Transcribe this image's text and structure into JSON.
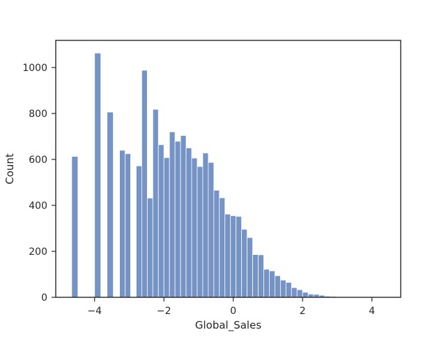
{
  "chart_data": {
    "type": "bar",
    "title": "",
    "xlabel": "Global_Sales",
    "ylabel": "Count",
    "xlim": [
      -5.12,
      4.83
    ],
    "ylim": [
      0,
      1118
    ],
    "x_ticks": [
      -4,
      -2,
      0,
      2,
      4
    ],
    "y_ticks": [
      0,
      200,
      400,
      600,
      800,
      1000
    ],
    "bar_color": "#7593c5",
    "bar_edge_color": "#ffffff",
    "grid": false,
    "bins": [
      {
        "x0": -4.66,
        "x1": -4.48,
        "count": 613
      },
      {
        "x0": -4.0,
        "x1": -3.82,
        "count": 1063
      },
      {
        "x0": -3.64,
        "x1": -3.46,
        "count": 806
      },
      {
        "x0": -3.28,
        "x1": -3.12,
        "count": 640
      },
      {
        "x0": -3.12,
        "x1": -2.96,
        "count": 625
      },
      {
        "x0": -2.8,
        "x1": -2.64,
        "count": 572
      },
      {
        "x0": -2.64,
        "x1": -2.48,
        "count": 988
      },
      {
        "x0": -2.48,
        "x1": -2.32,
        "count": 432
      },
      {
        "x0": -2.32,
        "x1": -2.16,
        "count": 818
      },
      {
        "x0": -2.16,
        "x1": -2.0,
        "count": 664
      },
      {
        "x0": -2.0,
        "x1": -1.84,
        "count": 608
      },
      {
        "x0": -1.84,
        "x1": -1.68,
        "count": 720
      },
      {
        "x0": -1.68,
        "x1": -1.52,
        "count": 679
      },
      {
        "x0": -1.52,
        "x1": -1.36,
        "count": 704
      },
      {
        "x0": -1.36,
        "x1": -1.2,
        "count": 650
      },
      {
        "x0": -1.2,
        "x1": -1.04,
        "count": 606
      },
      {
        "x0": -1.04,
        "x1": -0.88,
        "count": 569
      },
      {
        "x0": -0.88,
        "x1": -0.72,
        "count": 628
      },
      {
        "x0": -0.72,
        "x1": -0.56,
        "count": 587
      },
      {
        "x0": -0.56,
        "x1": -0.4,
        "count": 466
      },
      {
        "x0": -0.4,
        "x1": -0.24,
        "count": 433
      },
      {
        "x0": -0.24,
        "x1": -0.08,
        "count": 362
      },
      {
        "x0": -0.08,
        "x1": 0.08,
        "count": 355
      },
      {
        "x0": 0.08,
        "x1": 0.24,
        "count": 352
      },
      {
        "x0": 0.24,
        "x1": 0.4,
        "count": 296
      },
      {
        "x0": 0.4,
        "x1": 0.56,
        "count": 260
      },
      {
        "x0": 0.56,
        "x1": 0.72,
        "count": 186
      },
      {
        "x0": 0.72,
        "x1": 0.88,
        "count": 185
      },
      {
        "x0": 0.88,
        "x1": 1.04,
        "count": 122
      },
      {
        "x0": 1.04,
        "x1": 1.2,
        "count": 115
      },
      {
        "x0": 1.2,
        "x1": 1.36,
        "count": 94
      },
      {
        "x0": 1.36,
        "x1": 1.52,
        "count": 75
      },
      {
        "x0": 1.52,
        "x1": 1.68,
        "count": 65
      },
      {
        "x0": 1.68,
        "x1": 1.84,
        "count": 42
      },
      {
        "x0": 1.84,
        "x1": 2.0,
        "count": 33
      },
      {
        "x0": 2.0,
        "x1": 2.16,
        "count": 22
      },
      {
        "x0": 2.16,
        "x1": 2.32,
        "count": 14
      },
      {
        "x0": 2.32,
        "x1": 2.48,
        "count": 13
      },
      {
        "x0": 2.48,
        "x1": 2.64,
        "count": 9
      },
      {
        "x0": 2.64,
        "x1": 2.8,
        "count": 5
      },
      {
        "x0": 2.8,
        "x1": 2.96,
        "count": 4
      },
      {
        "x0": 2.96,
        "x1": 3.12,
        "count": 2
      },
      {
        "x0": 3.12,
        "x1": 3.28,
        "count": 2
      },
      {
        "x0": 3.28,
        "x1": 3.44,
        "count": 1
      },
      {
        "x0": 3.44,
        "x1": 3.6,
        "count": 1
      },
      {
        "x0": 3.6,
        "x1": 3.76,
        "count": 1
      },
      {
        "x0": 3.76,
        "x1": 3.92,
        "count": 1
      },
      {
        "x0": 4.08,
        "x1": 4.24,
        "count": 1
      },
      {
        "x0": 4.24,
        "x1": 4.4,
        "count": 1
      }
    ]
  }
}
